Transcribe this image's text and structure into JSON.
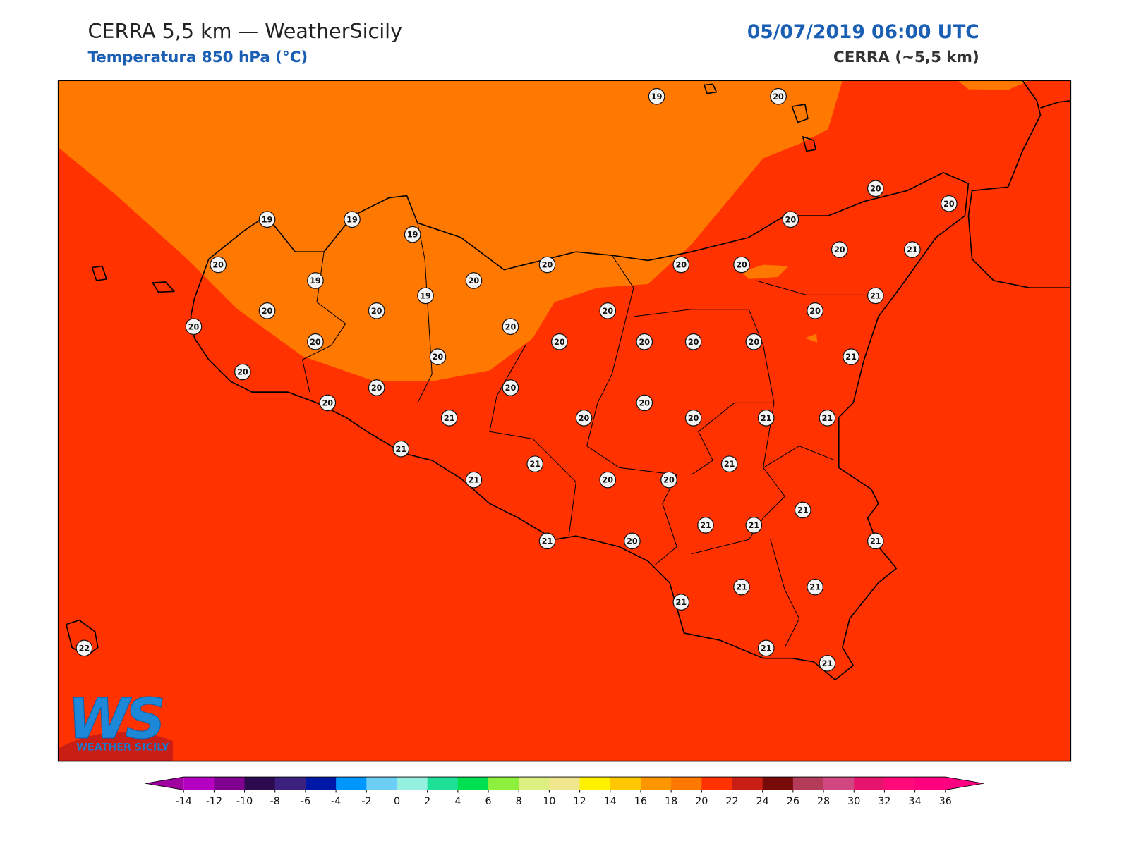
{
  "header": {
    "title": "CERRA 5,5 km — WeatherSicily",
    "subtitle": "Temperatura 850 hPa (°C)",
    "datetime": "05/07/2019 06:00 UTC",
    "model": "CERRA (~5,5 km)"
  },
  "map": {
    "stations": [
      19,
      20,
      20,
      20,
      19,
      19,
      19,
      20,
      20,
      20,
      20,
      20,
      20,
      21,
      19,
      20,
      19,
      21,
      20,
      20,
      20,
      20,
      20,
      20,
      20,
      20,
      20,
      20,
      20,
      21,
      20,
      20,
      20,
      20,
      20,
      20,
      21,
      20,
      20,
      21,
      21,
      21,
      21,
      21,
      21,
      20,
      20,
      21,
      21,
      21,
      21,
      20,
      21,
      21,
      21,
      21,
      21,
      21,
      22
    ]
  },
  "colorbar": {
    "ticks": [
      -14,
      -12,
      -10,
      -8,
      -6,
      -4,
      -2,
      0,
      2,
      4,
      6,
      8,
      10,
      12,
      14,
      16,
      18,
      20,
      22,
      24,
      26,
      28,
      30,
      32,
      34,
      36
    ],
    "colors": [
      "#b400c0",
      "#800090",
      "#2c0a50",
      "#3c2080",
      "#0018a8",
      "#0096ff",
      "#6ccef5",
      "#96f0e0",
      "#1ee096",
      "#00e050",
      "#8cf03c",
      "#dcf082",
      "#f0e68c",
      "#fff000",
      "#ffc800",
      "#ff9600",
      "#ff7800",
      "#ff3200",
      "#c81e14",
      "#780a0a",
      "#b43c5a",
      "#d24682",
      "#e6146e",
      "#ff0a78",
      "#ff0080"
    ],
    "under_color": "#a000a0",
    "over_color": "#ff0080"
  },
  "logo": {
    "mark": "WS",
    "text": "WEATHER SICILY"
  }
}
